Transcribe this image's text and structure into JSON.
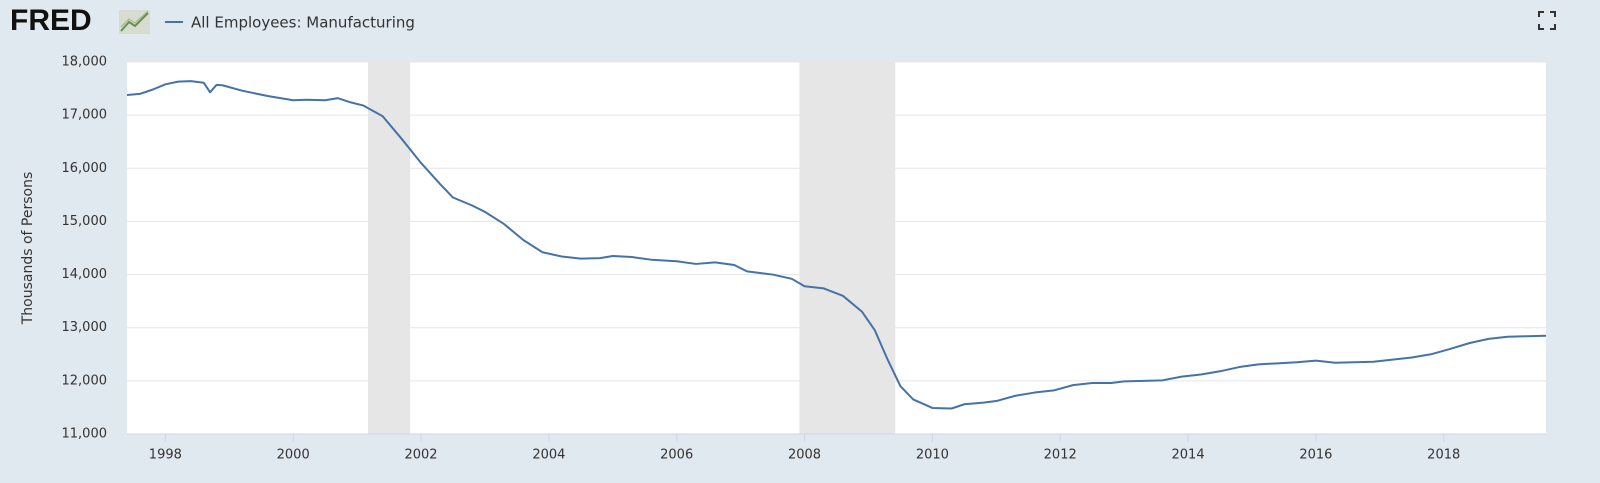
{
  "chart_data": {
    "type": "line",
    "brand": "FRED",
    "ylabel": "Thousands of Persons",
    "x": [
      1997.4,
      1997.6,
      1997.8,
      1998.0,
      1998.2,
      1998.4,
      1998.6,
      1998.7,
      1998.8,
      1998.9,
      1999.2,
      1999.6,
      2000.0,
      2000.2,
      2000.5,
      2000.7,
      2000.9,
      2001.1,
      2001.4,
      2001.7,
      2002.0,
      2002.3,
      2002.5,
      2002.8,
      2003.0,
      2003.3,
      2003.6,
      2003.9,
      2004.2,
      2004.5,
      2004.8,
      2005.0,
      2005.3,
      2005.6,
      2006.0,
      2006.3,
      2006.6,
      2006.9,
      2007.1,
      2007.5,
      2007.8,
      2008.0,
      2008.3,
      2008.6,
      2008.9,
      2009.1,
      2009.3,
      2009.5,
      2009.7,
      2010.0,
      2010.3,
      2010.5,
      2010.8,
      2011.0,
      2011.3,
      2011.6,
      2011.9,
      2012.2,
      2012.5,
      2012.8,
      2013.0,
      2013.3,
      2013.6,
      2013.9,
      2014.2,
      2014.5,
      2014.8,
      2015.1,
      2015.4,
      2015.7,
      2016.0,
      2016.3,
      2016.6,
      2016.9,
      2017.2,
      2017.5,
      2017.8,
      2018.1,
      2018.4,
      2018.7,
      2019.0,
      2019.3,
      2019.6
    ],
    "series": [
      {
        "name": "All Employees: Manufacturing",
        "color": "#4572a7",
        "values": [
          17380,
          17400,
          17480,
          17580,
          17630,
          17640,
          17610,
          17430,
          17570,
          17560,
          17460,
          17360,
          17280,
          17290,
          17280,
          17320,
          17240,
          17180,
          16980,
          16550,
          16100,
          15700,
          15450,
          15300,
          15180,
          14950,
          14650,
          14420,
          14340,
          14300,
          14310,
          14350,
          14330,
          14280,
          14250,
          14200,
          14230,
          14180,
          14060,
          14000,
          13920,
          13780,
          13740,
          13600,
          13300,
          12950,
          12400,
          11900,
          11650,
          11490,
          11480,
          11560,
          11590,
          11620,
          11720,
          11780,
          11820,
          11920,
          11960,
          11960,
          11990,
          12000,
          12010,
          12080,
          12120,
          12180,
          12260,
          12310,
          12330,
          12350,
          12380,
          12340,
          12350,
          12360,
          12400,
          12440,
          12500,
          12600,
          12710,
          12790,
          12830,
          12840,
          12850
        ]
      }
    ],
    "recessions": [
      [
        2001.17,
        2001.83
      ],
      [
        2007.92,
        2009.42
      ]
    ],
    "recession_color": "#e6e6e6",
    "xlim": [
      1997.4,
      2019.6
    ],
    "xticks": [
      1998,
      2000,
      2002,
      2004,
      2006,
      2008,
      2010,
      2012,
      2014,
      2016,
      2018
    ],
    "ylim": [
      11000,
      18000
    ],
    "yticks": [
      {
        "value": 11000,
        "label": "11,000"
      },
      {
        "value": 12000,
        "label": "12,000"
      },
      {
        "value": 13000,
        "label": "13,000"
      },
      {
        "value": 14000,
        "label": "14,000"
      },
      {
        "value": 15000,
        "label": "15,000"
      },
      {
        "value": 16000,
        "label": "16,000"
      },
      {
        "value": 17000,
        "label": "17,000"
      },
      {
        "value": 18000,
        "label": "18,000"
      }
    ],
    "grid": true
  }
}
